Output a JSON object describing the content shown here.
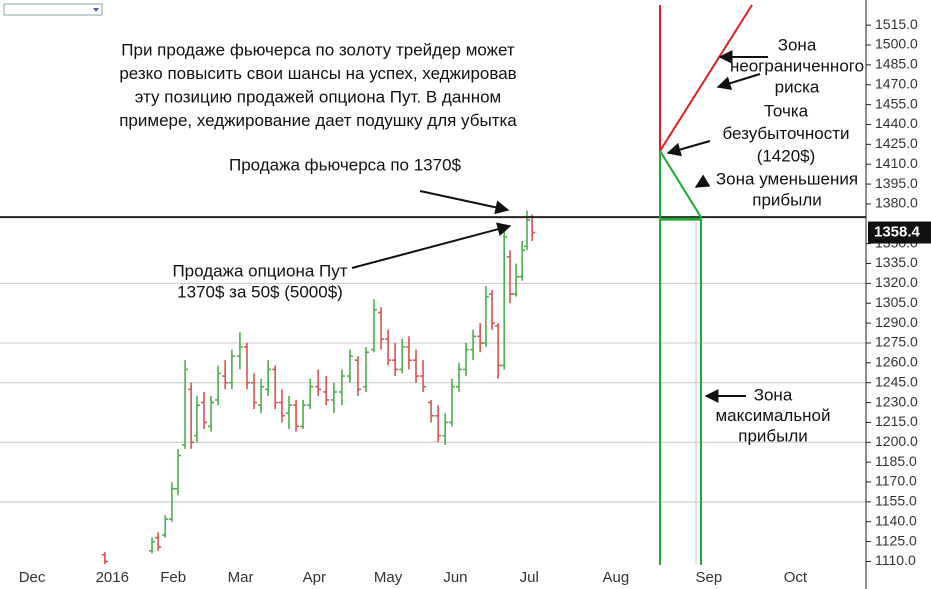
{
  "chart_data": {
    "type": "ohlc",
    "ylim": [
      1096,
      1534
    ],
    "yticks": [
      {
        "value": 1110,
        "label": "1110.0"
      },
      {
        "value": 1125,
        "label": "1125.0"
      },
      {
        "value": 1140,
        "label": "1140.0"
      },
      {
        "value": 1155,
        "label": "1155.0"
      },
      {
        "value": 1170,
        "label": "1170.0"
      },
      {
        "value": 1185,
        "label": "1185.0"
      },
      {
        "value": 1200,
        "label": "1200.0"
      },
      {
        "value": 1215,
        "label": "1215.0"
      },
      {
        "value": 1230,
        "label": "1230.0"
      },
      {
        "value": 1245,
        "label": "1245.0"
      },
      {
        "value": 1260,
        "label": "1260.0"
      },
      {
        "value": 1275,
        "label": "1275.0"
      },
      {
        "value": 1290,
        "label": "1290.0"
      },
      {
        "value": 1305,
        "label": "1305.0"
      },
      {
        "value": 1320,
        "label": "1320.0"
      },
      {
        "value": 1335,
        "label": "1335.0"
      },
      {
        "value": 1350,
        "label": "1350.0"
      },
      {
        "value": 1380,
        "label": "1380.0"
      },
      {
        "value": 1395,
        "label": "1395.0"
      },
      {
        "value": 1410,
        "label": "1410.0"
      },
      {
        "value": 1425,
        "label": "1425.0"
      },
      {
        "value": 1440,
        "label": "1440.0"
      },
      {
        "value": 1455,
        "label": "1455.0"
      },
      {
        "value": 1470,
        "label": "1470.0"
      },
      {
        "value": 1485,
        "label": "1485.0"
      },
      {
        "value": 1500,
        "label": "1500.0"
      },
      {
        "value": 1515,
        "label": "1515.0"
      }
    ],
    "xlim": [
      0,
      270
    ],
    "xticks": [
      {
        "value": 10,
        "label": "Dec"
      },
      {
        "value": 35,
        "label": "2016"
      },
      {
        "value": 54,
        "label": "Feb"
      },
      {
        "value": 75,
        "label": "Mar"
      },
      {
        "value": 98,
        "label": "Apr"
      },
      {
        "value": 121,
        "label": "May"
      },
      {
        "value": 142,
        "label": "Jun"
      },
      {
        "value": 165,
        "label": "Jul"
      },
      {
        "value": 192,
        "label": "Aug"
      },
      {
        "value": 221,
        "label": "Sep"
      },
      {
        "value": 248,
        "label": "Oct"
      }
    ],
    "grid_levels": [
      1155,
      1200,
      1245,
      1275,
      1320
    ],
    "up_color": "#4cae4c",
    "down_color": "#d9534f",
    "bars": {
      "x": [
        32.7,
        47.4,
        49.3,
        51.5,
        53.6,
        55.5,
        57.7,
        59.6,
        61.4,
        63.6,
        65.8,
        68,
        70.2,
        72.3,
        74.8,
        77,
        79.2,
        81.4,
        83.6,
        85.8,
        87.9,
        90.1,
        92.3,
        94.5,
        96.7,
        99.2,
        101.7,
        104.1,
        106.6,
        109.1,
        111.6,
        114.1,
        116.6,
        118.8,
        121,
        123.2,
        125.4,
        127.5,
        129.7,
        131.9,
        134.4,
        136.6,
        138.8,
        140.9,
        143.1,
        145.3,
        147.5,
        149.7,
        151.5,
        153.4,
        155.3,
        157.2,
        159,
        160.9,
        162.8,
        164.3,
        165.9
      ],
      "open": [
        1115,
        1118,
        1128,
        1130,
        1142,
        1165,
        1198,
        1240,
        1205,
        1230,
        1212,
        1232,
        1250,
        1245,
        1265,
        1272,
        1245,
        1228,
        1240,
        1255,
        1230,
        1222,
        1228,
        1212,
        1228,
        1242,
        1238,
        1232,
        1238,
        1250,
        1262,
        1242,
        1270,
        1298,
        1278,
        1262,
        1255,
        1272,
        1262,
        1250,
        1230,
        1220,
        1205,
        1215,
        1242,
        1255,
        1270,
        1280,
        1275,
        1312,
        1288,
        1258,
        1340,
        1312,
        1325,
        1348,
        1370
      ],
      "high": [
        1117,
        1128,
        1132,
        1145,
        1170,
        1195,
        1262,
        1245,
        1235,
        1238,
        1235,
        1258,
        1262,
        1270,
        1283,
        1275,
        1252,
        1248,
        1262,
        1258,
        1240,
        1235,
        1232,
        1232,
        1248,
        1255,
        1250,
        1245,
        1255,
        1270,
        1265,
        1272,
        1308,
        1302,
        1285,
        1275,
        1278,
        1280,
        1270,
        1262,
        1232,
        1228,
        1222,
        1248,
        1260,
        1275,
        1285,
        1290,
        1318,
        1315,
        1290,
        1362,
        1345,
        1335,
        1352,
        1375,
        1372
      ],
      "low": [
        1108,
        1116,
        1118,
        1128,
        1140,
        1160,
        1195,
        1195,
        1200,
        1210,
        1208,
        1228,
        1240,
        1240,
        1255,
        1240,
        1225,
        1222,
        1235,
        1225,
        1215,
        1210,
        1208,
        1210,
        1225,
        1235,
        1228,
        1222,
        1228,
        1245,
        1235,
        1238,
        1268,
        1270,
        1258,
        1250,
        1252,
        1255,
        1245,
        1238,
        1215,
        1200,
        1198,
        1212,
        1238,
        1250,
        1262,
        1268,
        1272,
        1285,
        1248,
        1255,
        1305,
        1310,
        1322,
        1345,
        1352
      ],
      "close": [
        1110,
        1125,
        1121,
        1142,
        1165,
        1190,
        1255,
        1200,
        1228,
        1215,
        1230,
        1252,
        1245,
        1265,
        1272,
        1245,
        1230,
        1242,
        1255,
        1230,
        1220,
        1228,
        1212,
        1228,
        1242,
        1240,
        1232,
        1238,
        1250,
        1265,
        1240,
        1268,
        1300,
        1278,
        1262,
        1255,
        1272,
        1262,
        1250,
        1242,
        1220,
        1205,
        1215,
        1242,
        1255,
        1270,
        1280,
        1275,
        1310,
        1290,
        1258,
        1355,
        1312,
        1325,
        1345,
        1368,
        1358.4
      ]
    },
    "sale_price": 1370,
    "breakeven_price": 1420,
    "annotations": {
      "intro": [
        "При продаже фьючерса по золоту трейдер может",
        "резко повысить свои шансы на успех, хеджировав",
        "эту позицию продажей опциона Пут. В данном",
        "примере, хеджирование дает подушку для убытка"
      ],
      "future_sale": "Продажа фьючерса по 1370$",
      "put_sale": [
        "Продажа опциона Пут",
        "1370$ за 50$ (5000$)"
      ],
      "zone_unlimited": [
        "Зона",
        "неограниченного",
        "риска"
      ],
      "breakeven": [
        "Точка",
        "безубыточности",
        "(1420$)"
      ],
      "zone_less": [
        "Зона уменьшения",
        "прибыли"
      ],
      "zone_max": [
        "Зона",
        "максимальной",
        "прибыли"
      ]
    }
  }
}
